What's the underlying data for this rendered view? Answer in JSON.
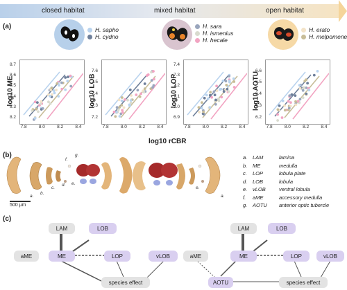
{
  "habitats": [
    "closed habitat",
    "mixed habitat",
    "open habitat"
  ],
  "panels": {
    "a": "(a)",
    "b": "(b)",
    "c": "(c)"
  },
  "legend_groups": [
    {
      "species": [
        {
          "name": "H. sapho",
          "color": "#b9d3ee"
        },
        {
          "name": "H. cydno",
          "color": "#6e7f9a"
        }
      ],
      "bg": "#b7d0ea"
    },
    {
      "species": [
        {
          "name": "H. sara",
          "color": "#9aa6bd"
        },
        {
          "name": "H. ismenius",
          "color": "#d9dbcf"
        },
        {
          "name": "H. hecale",
          "color": "#f2a4c2"
        }
      ],
      "bg": "#d9c4cf"
    },
    {
      "species": [
        {
          "name": "H. erato",
          "color": "#f3e3c8"
        },
        {
          "name": "H. melpomene",
          "color": "#c8bd98"
        }
      ],
      "bg": "#f6d9a6"
    }
  ],
  "chart_data": [
    {
      "type": "scatter",
      "ylabel": "log10 ME",
      "xlim": [
        7.75,
        8.45
      ],
      "ylim": [
        8.15,
        8.75
      ],
      "xticks": [
        "7.8",
        "8.0",
        "8.2",
        "8.4"
      ],
      "yticks": [
        "8.2",
        "8.3",
        "8.4",
        "8.5",
        "8.6",
        "8.7"
      ]
    },
    {
      "type": "scatter",
      "ylabel": "log10 LOB",
      "xlim": [
        7.75,
        8.45
      ],
      "ylim": [
        7.15,
        7.7
      ],
      "xticks": [
        "7.8",
        "8.0",
        "8.2",
        "8.4"
      ],
      "yticks": [
        "7.2",
        "7.3",
        "7.4",
        "7.5",
        "7.6"
      ]
    },
    {
      "type": "scatter",
      "ylabel": "log10 LOP",
      "xlim": [
        7.75,
        8.45
      ],
      "ylim": [
        6.85,
        7.45
      ],
      "xticks": [
        "7.8",
        "8.0",
        "8.2",
        "8.4"
      ],
      "yticks": [
        "6.9",
        "7.0",
        "7.1",
        "7.2",
        "7.3",
        "7.4"
      ]
    },
    {
      "type": "scatter",
      "ylabel": "log10 AOTU",
      "xlim": [
        7.75,
        8.45
      ],
      "ylim": [
        6.15,
        6.7
      ],
      "xticks": [
        "7.8",
        "8.0",
        "8.2",
        "8.4"
      ],
      "yticks": [
        "6.2",
        "6.3",
        "6.4",
        "6.5",
        "6.6"
      ]
    }
  ],
  "xlabel_main": "log10 rCBR",
  "neuropil_letters": [
    "a.",
    "b.",
    "c.",
    "d.",
    "e.",
    "f.",
    "g."
  ],
  "neuropils": [
    {
      "k": "a.",
      "abbr": "LAM",
      "name": "lamina"
    },
    {
      "k": "b.",
      "abbr": "ME",
      "name": "medulla"
    },
    {
      "k": "c.",
      "abbr": "LOP",
      "name": "lobula plate"
    },
    {
      "k": "d.",
      "abbr": "LOB",
      "name": "lobula"
    },
    {
      "k": "e.",
      "abbr": "vLOB",
      "name": "ventral lobula"
    },
    {
      "k": "f.",
      "abbr": "aME",
      "name": "accessory medulla"
    },
    {
      "k": "g.",
      "abbr": "AOTU",
      "name": "anterior optic tubercle"
    }
  ],
  "scale_bar": "500 μm",
  "network_left": {
    "LAM": "LAM",
    "LOB": "LOB",
    "aME": "aME",
    "ME": "ME",
    "LOP": "LOP",
    "vLOB": "vLOB",
    "species": "species effect"
  },
  "network_right": {
    "LAM": "LAM",
    "LOB": "LOB",
    "aME": "aME",
    "ME": "ME",
    "LOP": "LOP",
    "vLOB": "vLOB",
    "AOTU": "AOTU",
    "species": "species effect"
  }
}
